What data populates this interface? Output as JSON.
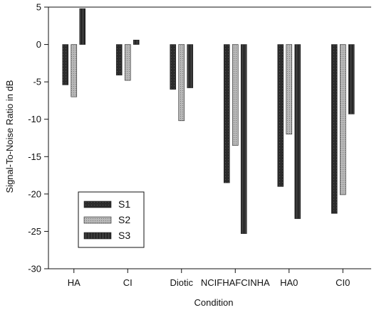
{
  "chart_data": {
    "type": "bar",
    "categories": [
      "HA",
      "CI",
      "Diotic",
      "NCIFHAFCINHA",
      "HA0",
      "CI0"
    ],
    "series": [
      {
        "name": "S1",
        "values": [
          -5.4,
          -4.1,
          -6.0,
          -18.5,
          -19.0,
          -22.6
        ]
      },
      {
        "name": "S2",
        "values": [
          -7.0,
          -4.8,
          -10.2,
          -13.5,
          -12.0,
          -20.1
        ]
      },
      {
        "name": "S3",
        "values": [
          4.8,
          0.6,
          -5.8,
          -25.3,
          -23.3,
          -9.3
        ]
      }
    ],
    "extra_series_note": "",
    "title": "",
    "xlabel": "Condition",
    "ylabel": "Signal-To-Noise Ratio in dB",
    "ylim": [
      -30,
      5
    ],
    "yticks": [
      5,
      0,
      -5,
      -10,
      -15,
      -20,
      -25,
      -30
    ],
    "grid": false,
    "legend_position": "bottom-left",
    "colors": {
      "S1": "#2b2b2b",
      "S2": "#b8b8b8",
      "S3": "#3a3a3a",
      "axis": "#111111"
    }
  }
}
